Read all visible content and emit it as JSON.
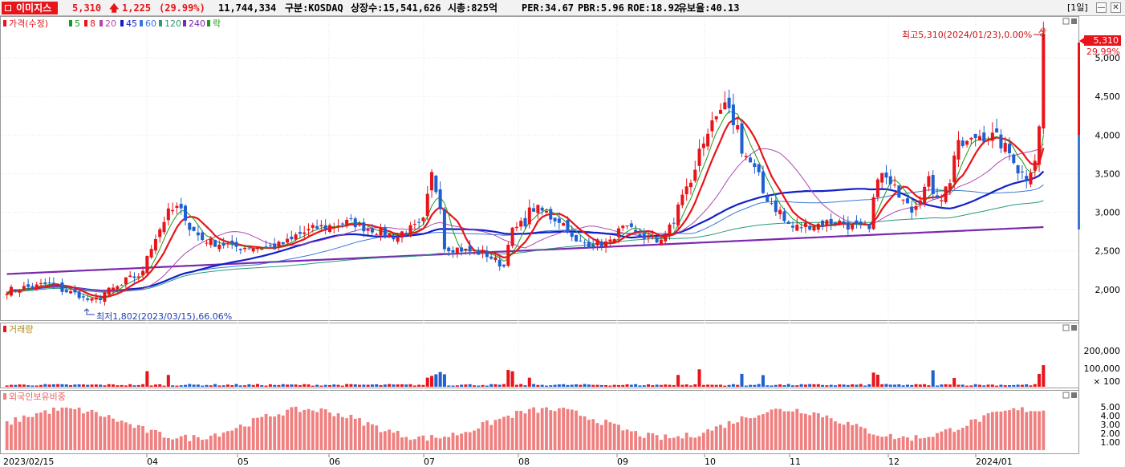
{
  "header": {
    "stock_name": "이미지스",
    "price": "5,310",
    "change": "1,225",
    "change_pct": "(29.99%)",
    "volume": "11,744,334",
    "market": "구분:KOSDAQ",
    "shares": "상장수:15,541,626",
    "market_cap": "시총:825억",
    "per": "PER:34.67",
    "pbr": "PBR:5.96",
    "roe": "ROE:18.92",
    "float_ratio": "유보율:40.13",
    "period": "[1일]"
  },
  "colors": {
    "up": "#e8141a",
    "down": "#1f5fd0",
    "ma5": "#1a9a1a",
    "ma8": "#e8141a",
    "ma20": "#b048b0",
    "ma45": "#1020c8",
    "ma60": "#3a78d8",
    "ma120": "#2a9a7a",
    "ma240": "#7a28b0",
    "foreign": "#f08080"
  },
  "chart_data": [
    {
      "type": "candlestick",
      "legend": [
        "가격(수정)",
        "5",
        "8",
        "20",
        "45",
        "60",
        "120",
        "240",
        "락"
      ],
      "ylim": [
        1600,
        5500
      ],
      "yticks": [
        "2,000",
        "2,500",
        "3,000",
        "3,500",
        "4,000",
        "4,500",
        "5,000"
      ],
      "xticks": [
        "2023/02/15",
        "04",
        "05",
        "06",
        "07",
        "08",
        "09",
        "10",
        "11",
        "12",
        "2024/01"
      ],
      "last_price_label": "5,310",
      "last_pct_label": "29.99%",
      "annotation_high": "최고5,310(2024/01/23),0.00%",
      "annotation_high_mark": "상",
      "annotation_low": "최저1,802(2023/03/15),66.06%",
      "anchors": [
        [
          "2023/02/15",
          1990
        ],
        [
          "2023/03/01",
          2070
        ],
        [
          "2023/03/15",
          1850
        ],
        [
          "2023/04/01",
          2230
        ],
        [
          "2023/04/07",
          2900
        ],
        [
          "2023/04/12",
          3050
        ],
        [
          "2023/04/20",
          2650
        ],
        [
          "2023/05/01",
          2550
        ],
        [
          "2023/05/15",
          2550
        ],
        [
          "2023/05/26",
          2780
        ],
        [
          "2023/06/08",
          2870
        ],
        [
          "2023/06/23",
          2680
        ],
        [
          "2023/07/03",
          2880
        ],
        [
          "2023/07/05",
          3480
        ],
        [
          "2023/07/10",
          2550
        ],
        [
          "2023/07/24",
          2450
        ],
        [
          "2023/07/28",
          2300
        ],
        [
          "2023/08/01",
          2750
        ],
        [
          "2023/08/08",
          3050
        ],
        [
          "2023/08/16",
          2900
        ],
        [
          "2023/08/22",
          2600
        ],
        [
          "2023/09/01",
          2600
        ],
        [
          "2023/09/06",
          2780
        ],
        [
          "2023/09/18",
          2620
        ],
        [
          "2023/09/22",
          2850
        ],
        [
          "2023/09/27",
          3300
        ],
        [
          "2023/10/04",
          4050
        ],
        [
          "2023/10/10",
          4350
        ],
        [
          "2023/10/13",
          4100
        ],
        [
          "2023/10/20",
          3450
        ],
        [
          "2023/10/26",
          3050
        ],
        [
          "2023/11/01",
          2800
        ],
        [
          "2023/11/15",
          2880
        ],
        [
          "2023/11/27",
          2760
        ],
        [
          "2023/11/29",
          3500
        ],
        [
          "2023/12/05",
          3300
        ],
        [
          "2023/12/11",
          3050
        ],
        [
          "2023/12/15",
          3400
        ],
        [
          "2023/12/20",
          3200
        ],
        [
          "2023/12/26",
          3850
        ],
        [
          "2024/01/02",
          4000
        ],
        [
          "2024/01/08",
          3950
        ],
        [
          "2024/01/12",
          3700
        ],
        [
          "2024/01/17",
          3450
        ],
        [
          "2024/01/22",
          4085
        ],
        [
          "2024/01/23",
          5310
        ]
      ]
    },
    {
      "type": "bar",
      "name": "거래량",
      "yticks": [
        "200,000",
        "100,000",
        "× 100"
      ],
      "ylim": [
        0,
        290000
      ]
    },
    {
      "type": "bar",
      "name": "외국인보유비중",
      "yticks": [
        "5.00",
        "4.00",
        "3.00",
        "2.00",
        "1.00"
      ],
      "ylim": [
        0,
        6.2
      ]
    }
  ]
}
